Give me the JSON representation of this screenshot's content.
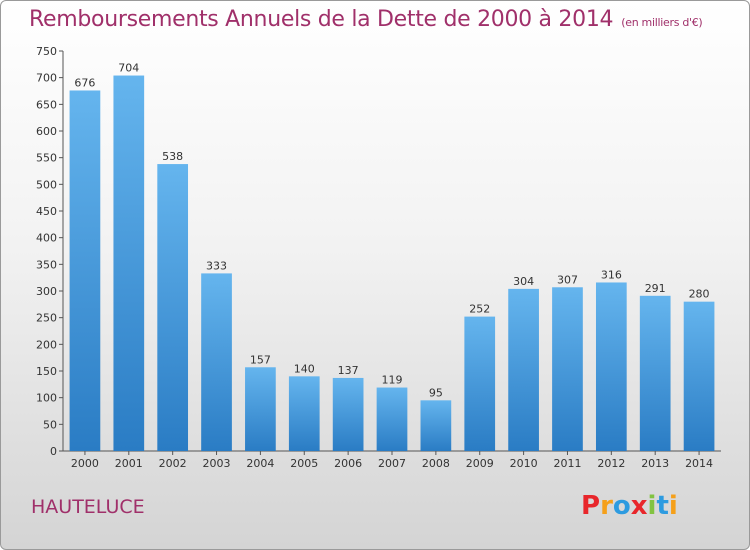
{
  "header": {
    "title": "Remboursements Annuels de la Dette de 2000 à 2014",
    "unit": "(en milliers d'€)"
  },
  "footer": {
    "commune": "HAUTELUCE",
    "logo_letters": [
      "P",
      "r",
      "o",
      "x",
      "i",
      "t",
      "i"
    ],
    "logo_colors": [
      "#e8262b",
      "#f5a01a",
      "#2d9be0",
      "#e8262b",
      "#82c341",
      "#2d9be0",
      "#f5a01a"
    ]
  },
  "colors": {
    "bar_top": "#65b5ee",
    "bar_bottom": "#2a7cc4",
    "title": "#a0306a"
  },
  "chart_data": {
    "type": "bar",
    "title": "Remboursements Annuels de la Dette de 2000 à 2014",
    "xlabel": "",
    "ylabel": "",
    "categories": [
      "2000",
      "2001",
      "2002",
      "2003",
      "2004",
      "2005",
      "2006",
      "2007",
      "2008",
      "2009",
      "2010",
      "2011",
      "2012",
      "2013",
      "2014"
    ],
    "values": [
      676,
      704,
      538,
      333,
      157,
      140,
      137,
      119,
      95,
      252,
      304,
      307,
      316,
      291,
      280
    ],
    "ylim": [
      0,
      750
    ],
    "yticks": [
      0,
      50,
      100,
      150,
      200,
      250,
      300,
      350,
      400,
      450,
      500,
      550,
      600,
      650,
      700,
      750
    ],
    "grid": false,
    "legend": "none"
  }
}
